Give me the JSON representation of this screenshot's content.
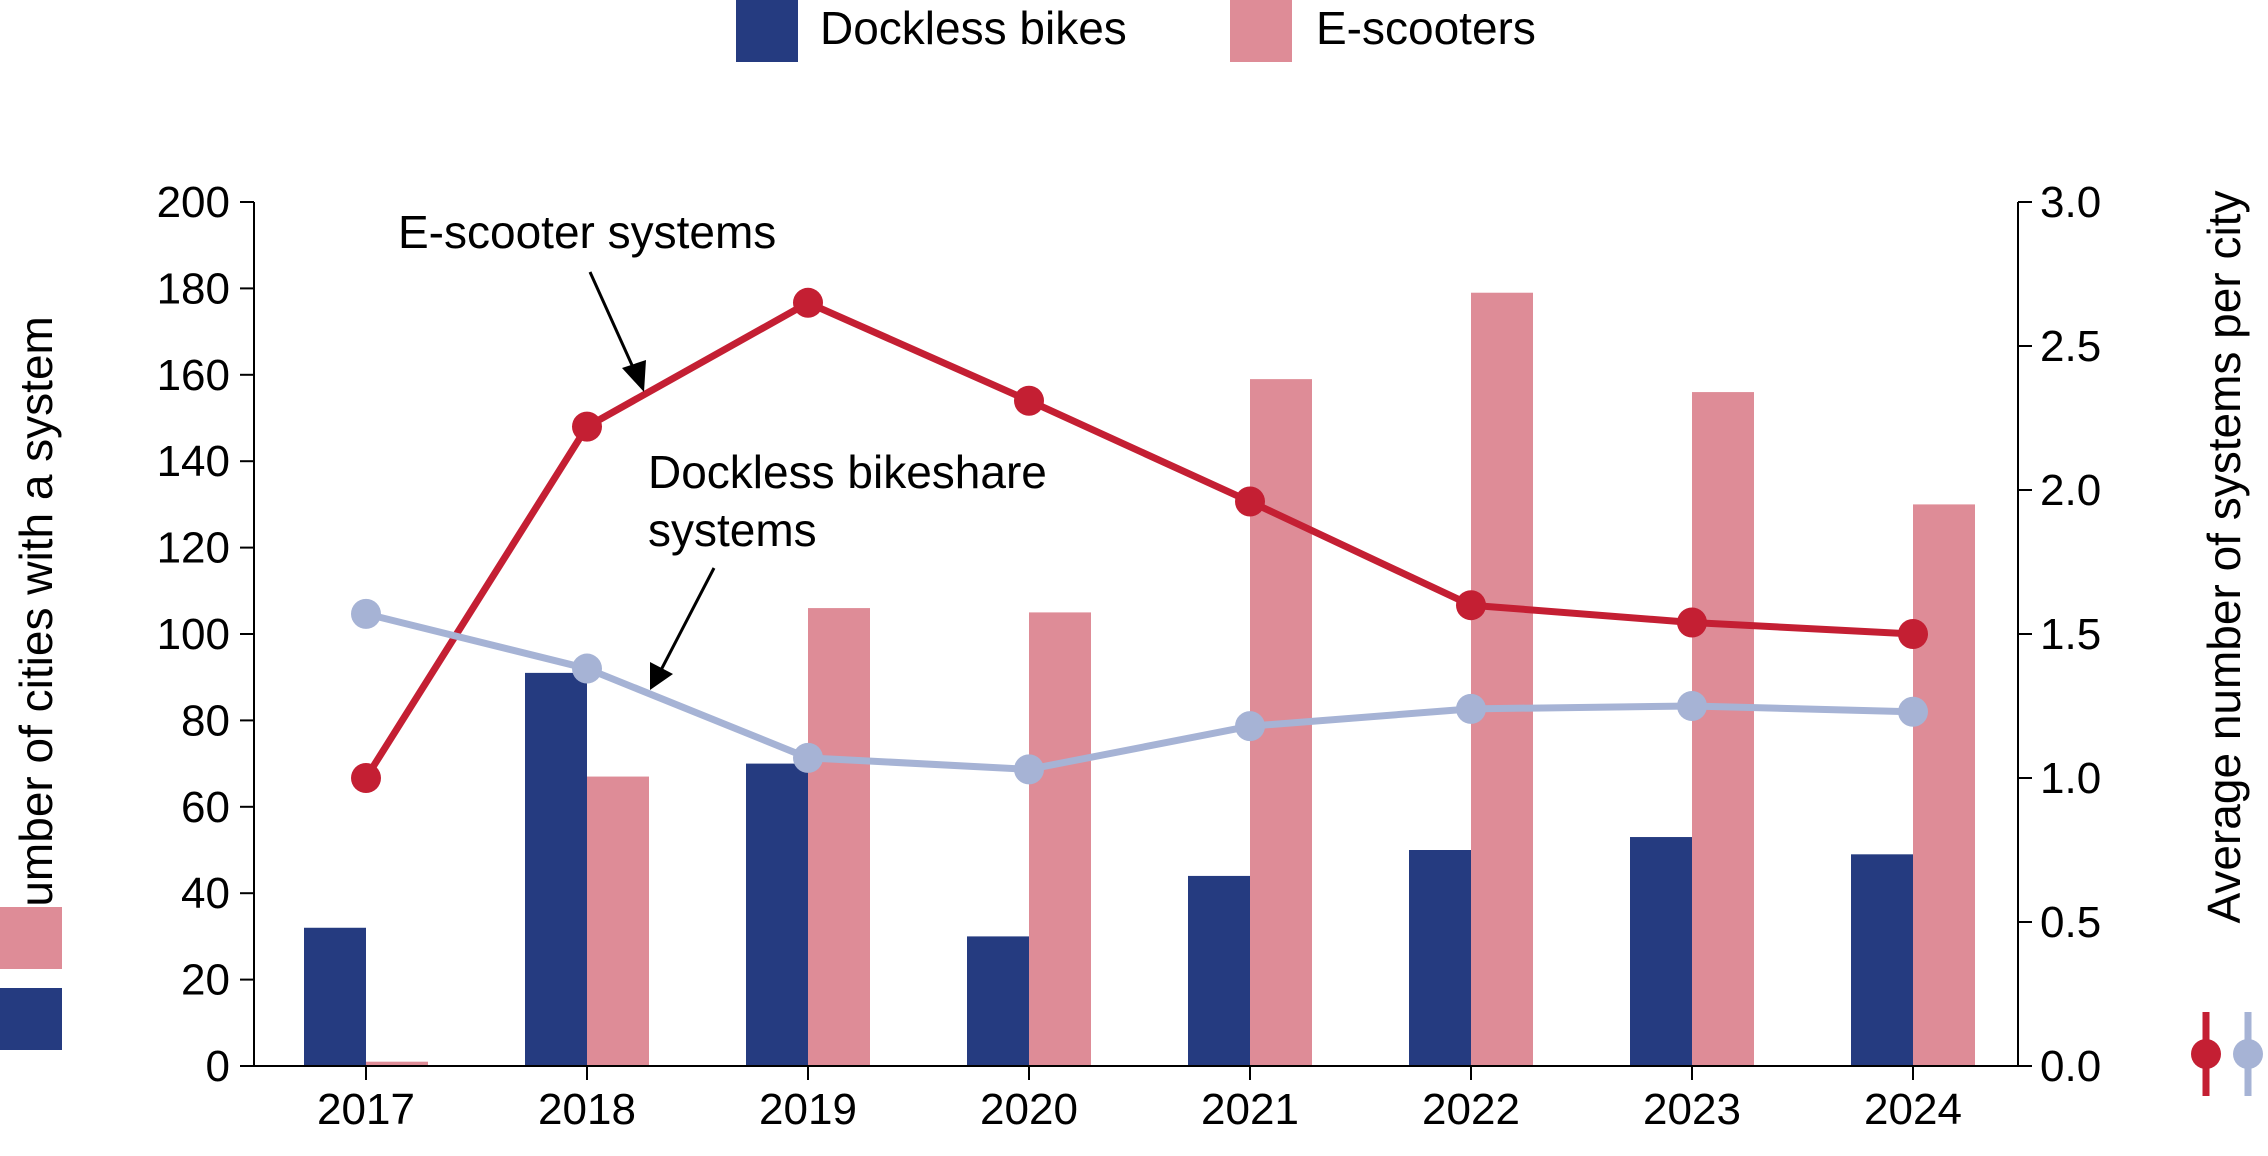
{
  "chart_data": {
    "type": "bar",
    "categories": [
      "2017",
      "2018",
      "2019",
      "2020",
      "2021",
      "2022",
      "2023",
      "2024"
    ],
    "series": [
      {
        "name": "Dockless bikes",
        "kind": "bar",
        "axis": "left",
        "color": "#253b80",
        "values": [
          32,
          91,
          70,
          30,
          44,
          50,
          53,
          49
        ]
      },
      {
        "name": "E-scooters",
        "kind": "bar",
        "axis": "left",
        "color": "#de8c97",
        "values": [
          1,
          67,
          106,
          105,
          159,
          179,
          156,
          130
        ]
      },
      {
        "kind": "line",
        "axis": "right",
        "color": "#c41f33",
        "values": [
          1.0,
          2.22,
          2.65,
          2.31,
          1.96,
          1.6,
          1.54,
          1.5
        ]
      },
      {
        "kind": "line",
        "axis": "right",
        "color": "#a6b3d5",
        "values": [
          1.57,
          1.38,
          1.07,
          1.03,
          1.18,
          1.24,
          1.25,
          1.23
        ]
      }
    ],
    "ylabel": "Number of cities with a system",
    "y2label": "Average number of systems per city",
    "ylim": [
      0,
      200
    ],
    "y2lim": [
      0,
      3.0
    ],
    "yticks": [
      "0",
      "20",
      "40",
      "60",
      "80",
      "100",
      "120",
      "140",
      "160",
      "180",
      "200"
    ],
    "y2ticks": [
      "0.0",
      "0.5",
      "1.0",
      "1.5",
      "2.0",
      "2.5",
      "3.0"
    ],
    "annotations": [
      {
        "text": "E-scooter systems"
      },
      {
        "lines": [
          "Dockless bikeshare",
          "systems"
        ]
      }
    ],
    "legend_position": "top-center",
    "grid": false
  }
}
